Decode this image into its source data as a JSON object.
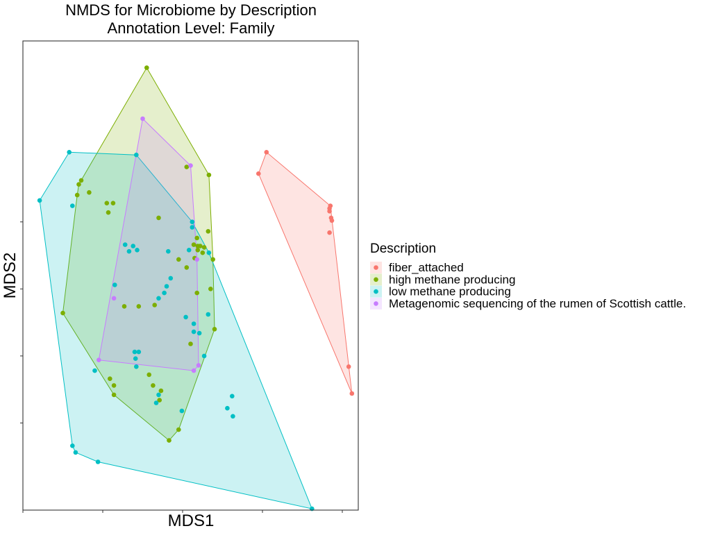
{
  "chart_data": {
    "type": "scatter",
    "title": "NMDS for Microbiome by Description",
    "subtitle": "Annotation Level: Family",
    "xlabel": "MDS1",
    "ylabel": "MDS2",
    "xlim": [
      -2.0,
      2.2
    ],
    "ylim": [
      -1.65,
      1.85
    ],
    "x_ticks": [
      -2,
      -1,
      0,
      1,
      2
    ],
    "y_ticks": [
      -1,
      -0.5,
      0,
      0.5
    ],
    "grid": false,
    "hull_fill_opacity": 0.2,
    "legend": {
      "title": "Description",
      "position": "right"
    },
    "series": [
      {
        "name": "fiber_attached",
        "color": "#F8766D",
        "points": [
          [
            1.05,
            1.02
          ],
          [
            0.95,
            0.86
          ],
          [
            1.85,
            0.62
          ],
          [
            1.84,
            0.6
          ],
          [
            1.84,
            0.58
          ],
          [
            1.86,
            0.53
          ],
          [
            1.87,
            0.51
          ],
          [
            1.84,
            0.42
          ],
          [
            2.08,
            -0.58
          ],
          [
            2.12,
            -0.78
          ]
        ]
      },
      {
        "name": "high methane producing",
        "color": "#7CAE00",
        "points": [
          [
            -0.45,
            1.65
          ],
          [
            0.05,
            0.91
          ],
          [
            0.33,
            0.85
          ],
          [
            -1.3,
            0.78
          ],
          [
            -1.27,
            0.81
          ],
          [
            -1.17,
            0.72
          ],
          [
            -1.32,
            0.7
          ],
          [
            -0.95,
            0.64
          ],
          [
            -0.87,
            0.64
          ],
          [
            -0.93,
            0.57
          ],
          [
            -0.3,
            0.53
          ],
          [
            0.32,
            0.43
          ],
          [
            0.18,
            0.38
          ],
          [
            0.14,
            0.33
          ],
          [
            0.19,
            0.32
          ],
          [
            0.22,
            0.32
          ],
          [
            0.27,
            0.31
          ],
          [
            0.19,
            0.29
          ],
          [
            0.25,
            0.27
          ],
          [
            0.15,
            0.23
          ],
          [
            -0.05,
            0.22
          ],
          [
            0.05,
            0.16
          ],
          [
            0.38,
            0.22
          ],
          [
            0.35,
            0.0
          ],
          [
            0.18,
            -0.03
          ],
          [
            -0.35,
            -0.12
          ],
          [
            -0.55,
            -0.13
          ],
          [
            -0.73,
            -0.13
          ],
          [
            -1.5,
            -0.18
          ],
          [
            0.4,
            -0.3
          ],
          [
            0.1,
            -0.41
          ],
          [
            -0.91,
            -0.67
          ],
          [
            -0.86,
            -0.72
          ],
          [
            -0.86,
            -0.79
          ],
          [
            -0.42,
            -0.64
          ],
          [
            -0.37,
            -0.72
          ],
          [
            -0.27,
            -0.76
          ],
          [
            -0.29,
            -0.83
          ],
          [
            -0.05,
            -1.05
          ],
          [
            -0.17,
            -1.13
          ]
        ]
      },
      {
        "name": "low methane producing",
        "color": "#00BFC4",
        "points": [
          [
            -1.42,
            1.02
          ],
          [
            -0.58,
            1.0
          ],
          [
            -1.79,
            0.66
          ],
          [
            -1.38,
            0.62
          ],
          [
            0.12,
            0.5
          ],
          [
            0.12,
            0.46
          ],
          [
            -0.72,
            0.33
          ],
          [
            -0.62,
            0.32
          ],
          [
            -0.57,
            0.29
          ],
          [
            -0.67,
            0.28
          ],
          [
            -0.18,
            0.28
          ],
          [
            0.08,
            0.29
          ],
          [
            0.33,
            0.27
          ],
          [
            -0.15,
            0.08
          ],
          [
            -0.85,
            0.03
          ],
          [
            -0.2,
            0.02
          ],
          [
            -0.23,
            -0.03
          ],
          [
            0.32,
            -0.19
          ],
          [
            -0.3,
            -0.07
          ],
          [
            0.04,
            -0.21
          ],
          [
            0.14,
            -0.26
          ],
          [
            0.14,
            -0.32
          ],
          [
            0.21,
            -0.33
          ],
          [
            -0.55,
            -0.47
          ],
          [
            -0.6,
            -0.47
          ],
          [
            -0.59,
            -0.52
          ],
          [
            -0.58,
            -0.58
          ],
          [
            0.27,
            -0.5
          ],
          [
            -0.3,
            -0.79
          ],
          [
            -0.33,
            -0.85
          ],
          [
            -1.1,
            -0.61
          ],
          [
            0.62,
            -0.8
          ],
          [
            0.56,
            -0.89
          ],
          [
            0.63,
            -0.95
          ],
          [
            -0.01,
            -0.91
          ],
          [
            -1.38,
            -1.17
          ],
          [
            -1.34,
            -1.22
          ],
          [
            -1.06,
            -1.29
          ],
          [
            1.62,
            -1.64
          ]
        ]
      },
      {
        "name": "Metagenomic sequencing of the rumen of Scottish cattle.",
        "color": "#C77CFF",
        "points": [
          [
            -0.5,
            1.27
          ],
          [
            0.1,
            0.92
          ],
          [
            0.18,
            0.22
          ],
          [
            -0.86,
            -0.07
          ],
          [
            -1.05,
            -0.53
          ],
          [
            0.2,
            -0.57
          ],
          [
            0.14,
            -0.61
          ]
        ]
      }
    ]
  }
}
